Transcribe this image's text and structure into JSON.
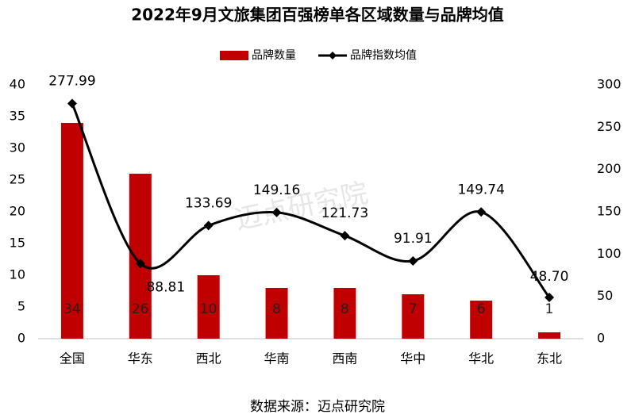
{
  "chart_data": {
    "type": "bar-line",
    "title": "2022年9月文旅集团百强榜单各区域数量与品牌均值",
    "categories": [
      "全国",
      "华东",
      "西北",
      "华南",
      "西南",
      "华中",
      "华北",
      "东北"
    ],
    "series": [
      {
        "name": "品牌数量",
        "type": "bar",
        "color": "#c00000",
        "values": [
          34,
          26,
          10,
          8,
          8,
          7,
          6,
          1
        ]
      },
      {
        "name": "品牌指数均值",
        "type": "line",
        "axis": "y2",
        "color": "#000000",
        "smooth": true,
        "values": [
          277.99,
          88.81,
          133.69,
          149.16,
          121.73,
          91.91,
          149.74,
          48.7
        ],
        "value_labels": [
          "277.99",
          "88.81",
          "133.69",
          "149.16",
          "121.73",
          "91.91",
          "149.74",
          "48.70"
        ]
      }
    ],
    "ylim": [
      0,
      40
    ],
    "yticks": [
      0,
      5,
      10,
      15,
      20,
      25,
      30,
      35,
      40
    ],
    "y2lim": [
      0,
      300
    ],
    "y2ticks": [
      0,
      50,
      100,
      150,
      200,
      250,
      300
    ],
    "legend": "top",
    "watermark": "迈点研究院",
    "source": "数据来源：迈点研究院"
  }
}
